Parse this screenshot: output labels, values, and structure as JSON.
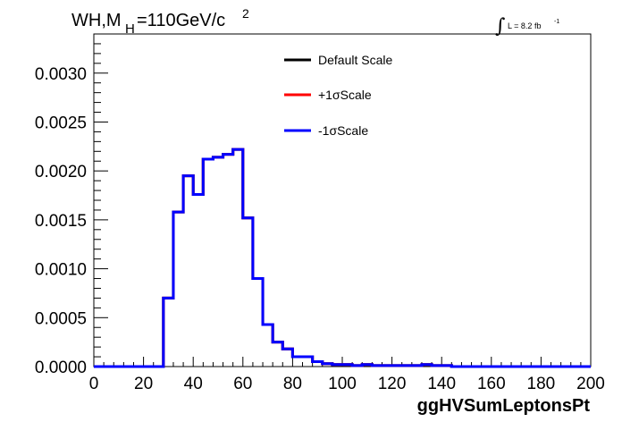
{
  "chart_data": {
    "type": "line",
    "title_main": "WH,M",
    "title_sub": "H",
    "title_rest": "=110GeV/c",
    "title_sup": "2",
    "lumi_label": "L = 8.2 fb",
    "lumi_sup": "-1",
    "xlabel": "ggHVSumLeptonsPt",
    "xlim": [
      0,
      200
    ],
    "ylim": [
      0,
      0.0034
    ],
    "x_ticks": [
      "0",
      "20",
      "40",
      "60",
      "80",
      "100",
      "120",
      "140",
      "160",
      "180",
      "200"
    ],
    "y_ticks": [
      "0.0000",
      "0.0005",
      "0.0010",
      "0.0015",
      "0.0020",
      "0.0025",
      "0.0030"
    ],
    "bin_edges": [
      0,
      4,
      8,
      12,
      16,
      20,
      24,
      28,
      32,
      36,
      40,
      44,
      48,
      52,
      56,
      60,
      64,
      68,
      72,
      76,
      80,
      84,
      88,
      92,
      96,
      100,
      104,
      108,
      112,
      116,
      120,
      124,
      128,
      132,
      136,
      140,
      144,
      148,
      152,
      156,
      160,
      164,
      168,
      172,
      176,
      180,
      184,
      188,
      192,
      196,
      200
    ],
    "series": [
      {
        "name": "Default Scale",
        "color": "#000000",
        "values": [
          0,
          0,
          0,
          0,
          0,
          0,
          0,
          0.0007,
          0.00158,
          0.00195,
          0.00176,
          0.00212,
          0.00214,
          0.00217,
          0.00222,
          0.00152,
          0.0009,
          0.00043,
          0.00025,
          0.00018,
          0.0001,
          0.0001,
          5e-05,
          3e-05,
          2e-05,
          2e-05,
          1e-05,
          2e-05,
          1e-05,
          1e-05,
          1e-05,
          1e-05,
          1e-05,
          2e-05,
          1e-05,
          1e-05,
          0,
          0,
          0,
          0,
          0,
          0,
          0,
          0,
          0,
          0,
          0,
          0,
          0,
          0
        ]
      },
      {
        "name": "+1σScale",
        "color": "#ff0000",
        "values": [
          0,
          0,
          0,
          0,
          0,
          0,
          0,
          0.0007,
          0.00158,
          0.00195,
          0.00176,
          0.00212,
          0.00214,
          0.00217,
          0.00222,
          0.00152,
          0.0009,
          0.00043,
          0.00025,
          0.00018,
          0.0001,
          0.0001,
          5e-05,
          3e-05,
          2e-05,
          2e-05,
          1e-05,
          2e-05,
          1e-05,
          1e-05,
          1e-05,
          1e-05,
          1e-05,
          2e-05,
          1e-05,
          1e-05,
          0,
          0,
          0,
          0,
          0,
          0,
          0,
          0,
          0,
          0,
          0,
          0,
          0,
          0
        ]
      },
      {
        "name": "-1σScale",
        "color": "#0000ff",
        "values": [
          0,
          0,
          0,
          0,
          0,
          0,
          0,
          0.0007,
          0.00158,
          0.00195,
          0.00176,
          0.00212,
          0.00214,
          0.00217,
          0.00222,
          0.00152,
          0.0009,
          0.00043,
          0.00025,
          0.00018,
          0.0001,
          0.0001,
          5e-05,
          3e-05,
          2e-05,
          2e-05,
          1e-05,
          2e-05,
          1e-05,
          1e-05,
          1e-05,
          1e-05,
          1e-05,
          2e-05,
          1e-05,
          1e-05,
          0,
          0,
          0,
          0,
          0,
          0,
          0,
          0,
          0,
          0,
          0,
          0,
          0,
          0
        ]
      }
    ],
    "legend_position": "top-right",
    "grid": false
  }
}
